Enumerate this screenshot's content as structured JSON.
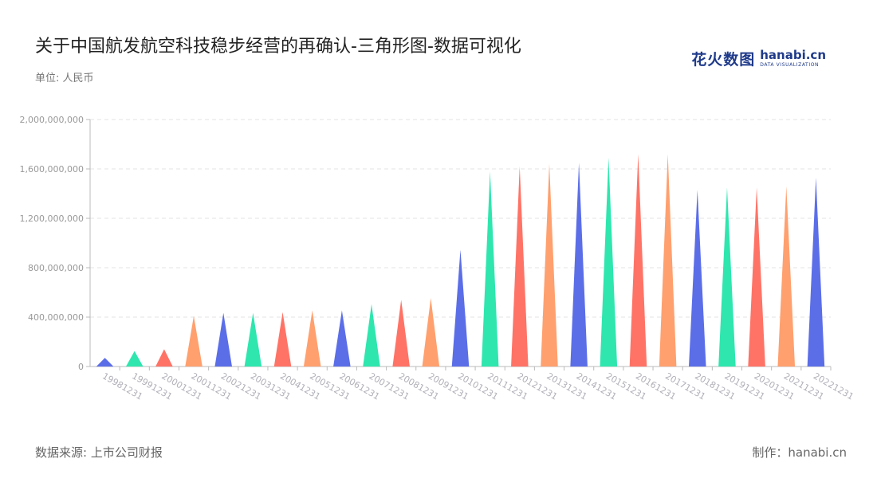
{
  "title": "关于中国航发航空科技稳步经营的再确认-三角形图-数据可视化",
  "unit": "单位: 人民币",
  "logo": {
    "cn": "花火数图",
    "en": "hanabi.cn",
    "en_sub": "DATA VISUALIZATION"
  },
  "footer": {
    "source": "数据来源: 上市公司财报",
    "maker": "制作：hanabi.cn"
  },
  "colors": {
    "palette": [
      "#5b6ee8",
      "#2ee6ae",
      "#ff7366",
      "#ffa06e"
    ],
    "grid": "#e3e3e3",
    "axis": "#bbbbbb",
    "tick_text": "#999999",
    "x_tick_text": "#b0b0b8"
  },
  "chart_data": {
    "type": "bar",
    "mark": "triangle",
    "categories": [
      "19981231",
      "19991231",
      "20001231",
      "20011231",
      "20021231",
      "20031231",
      "20041231",
      "20051231",
      "20061231",
      "20071231",
      "20081231",
      "20091231",
      "20101231",
      "20111231",
      "20121231",
      "20131231",
      "20141231",
      "20151231",
      "20161231",
      "20171231",
      "20181231",
      "20191231",
      "20201231",
      "20211231",
      "20221231"
    ],
    "values": [
      70000000,
      125000000,
      140000000,
      410000000,
      435000000,
      435000000,
      440000000,
      455000000,
      455000000,
      505000000,
      540000000,
      555000000,
      945000000,
      1580000000,
      1620000000,
      1640000000,
      1650000000,
      1690000000,
      1720000000,
      1720000000,
      1430000000,
      1450000000,
      1450000000,
      1460000000,
      1530000000
    ],
    "ylim": [
      0,
      2000000000
    ],
    "yticks": [
      0,
      400000000,
      800000000,
      1200000000,
      1600000000,
      2000000000
    ],
    "ytick_labels": [
      "0",
      "400,000,000",
      "800,000,000",
      "1,200,000,000",
      "1,600,000,000",
      "2,000,000,000"
    ],
    "grid": true,
    "legend": "none"
  }
}
